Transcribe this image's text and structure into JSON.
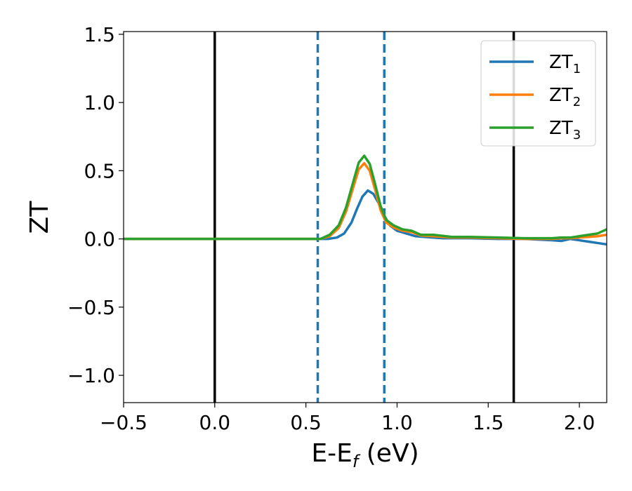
{
  "chart_data": {
    "type": "line",
    "xlabel": {
      "main": "E-E",
      "sub": "f",
      "unit": " (eV)"
    },
    "ylabel": "ZT",
    "xlim": [
      -0.5,
      2.15
    ],
    "ylim": [
      -1.2,
      1.52
    ],
    "xticks": [
      -0.5,
      0.0,
      0.5,
      1.0,
      1.5,
      2.0
    ],
    "xtick_labels": [
      "−0.5",
      "0.0",
      "0.5",
      "1.0",
      "1.5",
      "2.0"
    ],
    "yticks": [
      -1.0,
      -0.5,
      0.0,
      0.5,
      1.0,
      1.5
    ],
    "ytick_labels": [
      "−1.0",
      "−0.5",
      "0.0",
      "0.5",
      "1.0",
      "1.5"
    ],
    "grid": false,
    "legend": "top-right",
    "vlines": [
      {
        "x": 0.0,
        "style": "solid",
        "color": "#000000"
      },
      {
        "x": 1.64,
        "style": "solid",
        "color": "#000000"
      },
      {
        "x": 0.565,
        "style": "dashed",
        "color": "#1f77b4"
      },
      {
        "x": 0.93,
        "style": "dashed",
        "color": "#1f77b4"
      }
    ],
    "series": [
      {
        "name": "ZT",
        "sub": "1",
        "color": "#1f77b4",
        "x": [
          -0.5,
          0.5,
          0.62,
          0.67,
          0.71,
          0.75,
          0.78,
          0.81,
          0.84,
          0.87,
          0.9,
          0.93,
          0.96,
          1.0,
          1.05,
          1.1,
          1.15,
          1.25,
          1.4,
          1.55,
          1.7,
          1.85,
          1.9,
          1.95,
          2.0,
          2.05,
          2.1,
          2.15
        ],
        "y": [
          0.0,
          0.0,
          0.0,
          0.01,
          0.04,
          0.12,
          0.22,
          0.31,
          0.355,
          0.33,
          0.26,
          0.17,
          0.1,
          0.06,
          0.04,
          0.02,
          0.015,
          0.005,
          0.005,
          0.0,
          0.0,
          -0.01,
          -0.015,
          0.0,
          -0.01,
          -0.02,
          -0.03,
          -0.04
        ]
      },
      {
        "name": "ZT",
        "sub": "2",
        "color": "#ff7f0e",
        "x": [
          -0.5,
          0.5,
          0.58,
          0.63,
          0.68,
          0.72,
          0.76,
          0.79,
          0.82,
          0.85,
          0.88,
          0.91,
          0.94,
          0.98,
          1.03,
          1.08,
          1.13,
          1.2,
          1.3,
          1.4,
          1.55,
          1.7,
          1.85,
          1.9,
          1.95,
          2.0,
          2.05,
          2.1,
          2.15
        ],
        "y": [
          0.0,
          0.0,
          0.0,
          0.02,
          0.08,
          0.2,
          0.38,
          0.51,
          0.555,
          0.5,
          0.36,
          0.21,
          0.12,
          0.085,
          0.06,
          0.05,
          0.025,
          0.02,
          0.01,
          0.01,
          0.005,
          0.0,
          0.0,
          0.005,
          0.005,
          0.01,
          0.015,
          0.02,
          0.03
        ]
      },
      {
        "name": "ZT",
        "sub": "3",
        "color": "#2ca02c",
        "x": [
          -0.5,
          0.5,
          0.58,
          0.63,
          0.68,
          0.72,
          0.76,
          0.79,
          0.82,
          0.85,
          0.88,
          0.91,
          0.94,
          0.98,
          1.03,
          1.08,
          1.13,
          1.2,
          1.3,
          1.4,
          1.55,
          1.7,
          1.85,
          1.9,
          1.95,
          2.0,
          2.05,
          2.1,
          2.15
        ],
        "y": [
          0.0,
          0.0,
          0.0,
          0.03,
          0.1,
          0.23,
          0.42,
          0.56,
          0.61,
          0.55,
          0.4,
          0.24,
          0.14,
          0.1,
          0.07,
          0.06,
          0.03,
          0.03,
          0.015,
          0.015,
          0.01,
          0.005,
          0.005,
          0.01,
          0.01,
          0.02,
          0.03,
          0.04,
          0.07
        ]
      }
    ]
  }
}
